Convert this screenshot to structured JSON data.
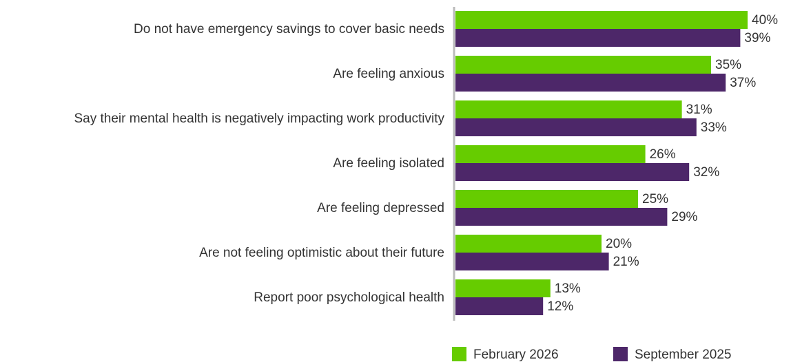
{
  "chart_data": {
    "type": "bar",
    "orientation": "horizontal",
    "categories": [
      "Do not have emergency savings to cover basic needs",
      "Are feeling anxious",
      "Say their mental health is negatively impacting work productivity",
      "Are feeling isolated",
      "Are feeling depressed",
      "Are not feeling optimistic about their future",
      "Report poor psychological health"
    ],
    "series": [
      {
        "name": "February 2026",
        "color": "#66cc00",
        "values": [
          40,
          35,
          31,
          26,
          25,
          20,
          13
        ],
        "labels": [
          "40%",
          "35%",
          "31%",
          "26%",
          "25%",
          "20%",
          "13%"
        ]
      },
      {
        "name": "September 2025",
        "color": "#4d2769",
        "values": [
          39,
          37,
          33,
          32,
          29,
          21,
          12
        ],
        "labels": [
          "39%",
          "37%",
          "33%",
          "32%",
          "29%",
          "21%",
          "12%"
        ]
      }
    ],
    "xlim": [
      0,
      40
    ],
    "axis_color": "#bbbbbb",
    "grid": false,
    "legend_position": "bottom-right"
  }
}
